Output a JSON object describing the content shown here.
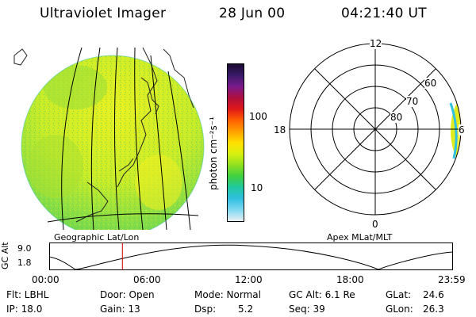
{
  "header": {
    "title": "Ultraviolet Imager",
    "date": "28 Jun 00",
    "time": "04:21:40 UT"
  },
  "colorbar": {
    "label": "photon cm⁻²s⁻¹",
    "ticks": [
      "100",
      "10"
    ],
    "stops": [
      "#1a0a30",
      "#3a1a6a",
      "#7a1a8a",
      "#b01040",
      "#e01818",
      "#ff6000",
      "#ffa000",
      "#ffe000",
      "#d8f010",
      "#90e020",
      "#40d040",
      "#20c8a0",
      "#30c0e0",
      "#80d8f0",
      "#e8f0f4"
    ]
  },
  "geo_panel": {
    "caption": "Geographic Lat/Lon"
  },
  "polar_panel": {
    "caption": "Apex  MLat/MLT",
    "labels": {
      "top": "12",
      "left": "18",
      "bottom": "0",
      "right": "6"
    },
    "lat_labels": [
      "60",
      "70",
      "80"
    ]
  },
  "altitude_plot": {
    "ylabel": "GC Alt",
    "yticks": [
      "9.0",
      "1.8"
    ],
    "xticks": [
      "00:00",
      "06:00",
      "12:00",
      "18:00",
      "23:59"
    ],
    "current_time_hours": 4.36
  },
  "info": {
    "flt": "Flt: LBHL",
    "ip": "IP: 18.0",
    "door": "Door: Open",
    "gain": "Gain: 13",
    "mode": "Mode: Normal",
    "dsp_label": "Dsp:",
    "dsp_value": "5.2",
    "gc_alt": "GC Alt: 6.1 Re",
    "seq": "Seq: 39",
    "glat_label": "GLat:",
    "glat_value": "24.6",
    "glon_label": "GLon:",
    "glon_value": "26.3"
  },
  "colors": {
    "aurora_green": "#9ce038",
    "aurora_yellow": "#e6ee24",
    "time_marker": "#cc0000"
  }
}
